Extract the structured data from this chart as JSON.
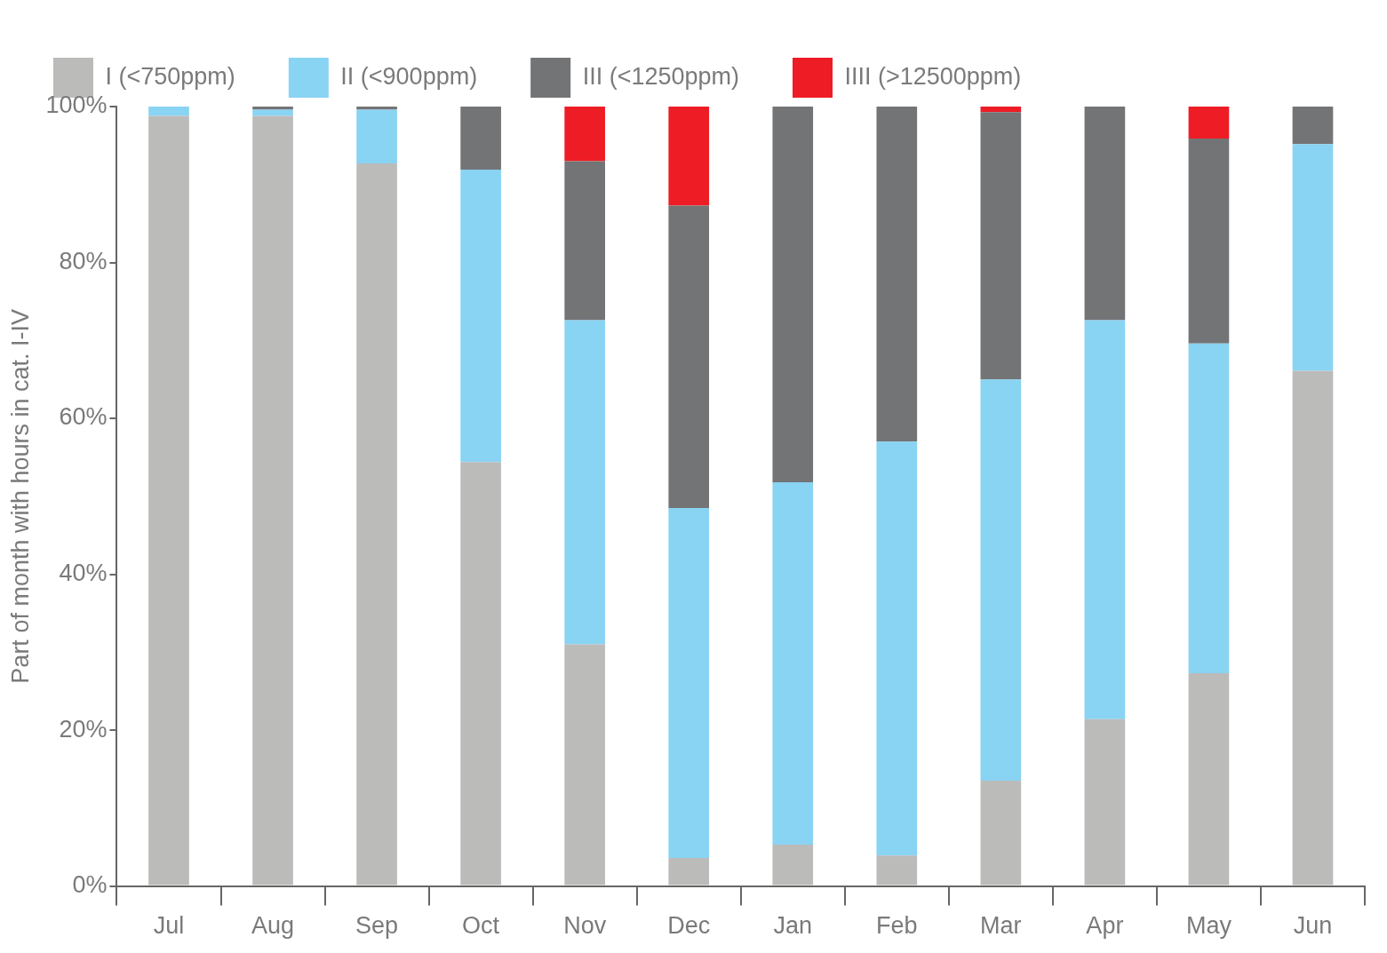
{
  "chart_data": {
    "type": "bar",
    "stacked": true,
    "ylabel": "Part of month with hours in cat. I-IV",
    "categories": [
      "Jul",
      "Aug",
      "Sep",
      "Oct",
      "Nov",
      "Dec",
      "Jan",
      "Feb",
      "Mar",
      "Apr",
      "May",
      "Jun"
    ],
    "series": [
      {
        "name": "I (<750ppm)",
        "color": "#bbbbba",
        "values": [
          98.8,
          98.8,
          92.7,
          54.4,
          31.0,
          3.6,
          5.3,
          3.9,
          13.5,
          21.4,
          27.3,
          66.1
        ]
      },
      {
        "name": "II (<900ppm)",
        "color": "#89d3f3",
        "values": [
          1.2,
          0.8,
          6.9,
          37.5,
          41.6,
          44.9,
          46.5,
          53.1,
          51.5,
          51.2,
          42.3,
          29.1
        ]
      },
      {
        "name": "III (<1250ppm)",
        "color": "#737476",
        "values": [
          0,
          0.4,
          0.4,
          8.1,
          20.4,
          38.8,
          48.2,
          43.0,
          34.3,
          27.4,
          26.3,
          4.8
        ]
      },
      {
        "name": "IIII (>12500ppm)",
        "color": "#ee1c25",
        "values": [
          0,
          0,
          0,
          0,
          7.0,
          12.7,
          0,
          0,
          0.7,
          0,
          4.1,
          0
        ]
      }
    ],
    "ylim": [
      0,
      100
    ],
    "yticks": [
      {
        "value": 0,
        "label": "0%"
      },
      {
        "value": 20,
        "label": "20%"
      },
      {
        "value": 40,
        "label": "40%"
      },
      {
        "value": 60,
        "label": "60%"
      },
      {
        "value": 80,
        "label": "80%"
      },
      {
        "value": 100,
        "label": "100%"
      }
    ],
    "grid": false,
    "legend": "top left"
  }
}
